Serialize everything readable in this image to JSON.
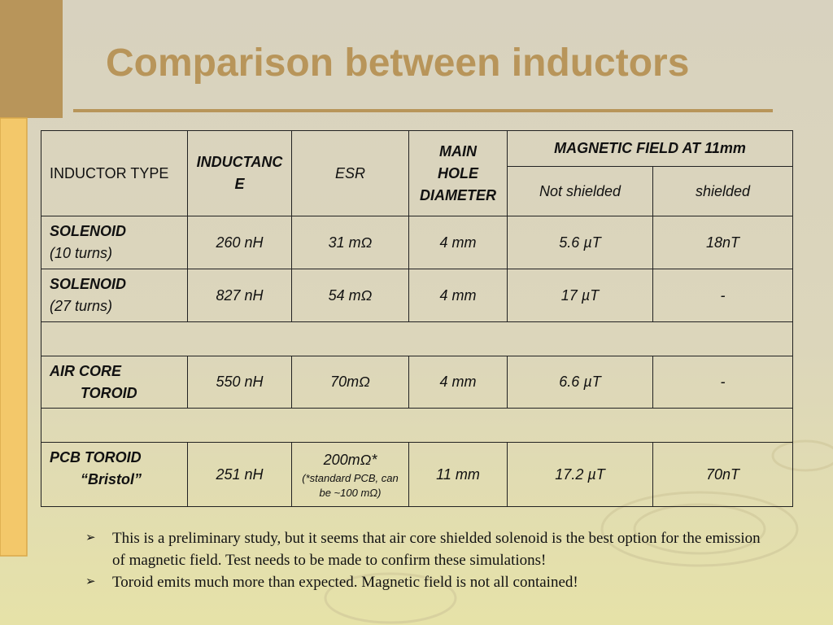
{
  "title": "Comparison between inductors",
  "table": {
    "header": {
      "inductor_type": "INDUCTOR TYPE",
      "inductance": "INDUCTANCE",
      "esr": "ESR",
      "diameter": [
        "MAIN",
        "HOLE",
        "DIAMETER"
      ],
      "magnetic_field": "MAGNETIC FIELD AT 11mm",
      "not_shielded": "Not shielded",
      "shielded": "shielded"
    },
    "rows": [
      {
        "type": [
          "SOLENOID",
          "(10 turns)"
        ],
        "inductance": "260 nH",
        "esr": "31 mΩ",
        "diameter": "4 mm",
        "not_shielded": "5.6 µT",
        "shielded": "18nT"
      },
      {
        "type": [
          "SOLENOID",
          "(27 turns)"
        ],
        "inductance": "827 nH",
        "esr": "54 mΩ",
        "diameter": "4 mm",
        "not_shielded": "17  µT",
        "shielded": "-"
      },
      {
        "type": [
          "AIR CORE",
          "TOROID"
        ],
        "inductance": "550 nH",
        "esr": "70mΩ",
        "diameter": "4 mm",
        "not_shielded": "6.6 µT",
        "shielded": "-"
      },
      {
        "type": [
          "PCB TOROID",
          "“Bristol”"
        ],
        "inductance": "251 nH",
        "esr": "200mΩ*",
        "esr_note": "(*standard PCB, can be ~100 mΩ)",
        "diameter": "11 mm",
        "not_shielded": "17.2 µT",
        "shielded": "70nT"
      }
    ]
  },
  "bullets": [
    "This is a preliminary study, but it seems that air core shielded solenoid is the best option for the emission of magnetic field. Test needs to be made to confirm these simulations!",
    "Toroid emits much more than expected. Magnetic field is not all contained!"
  ]
}
